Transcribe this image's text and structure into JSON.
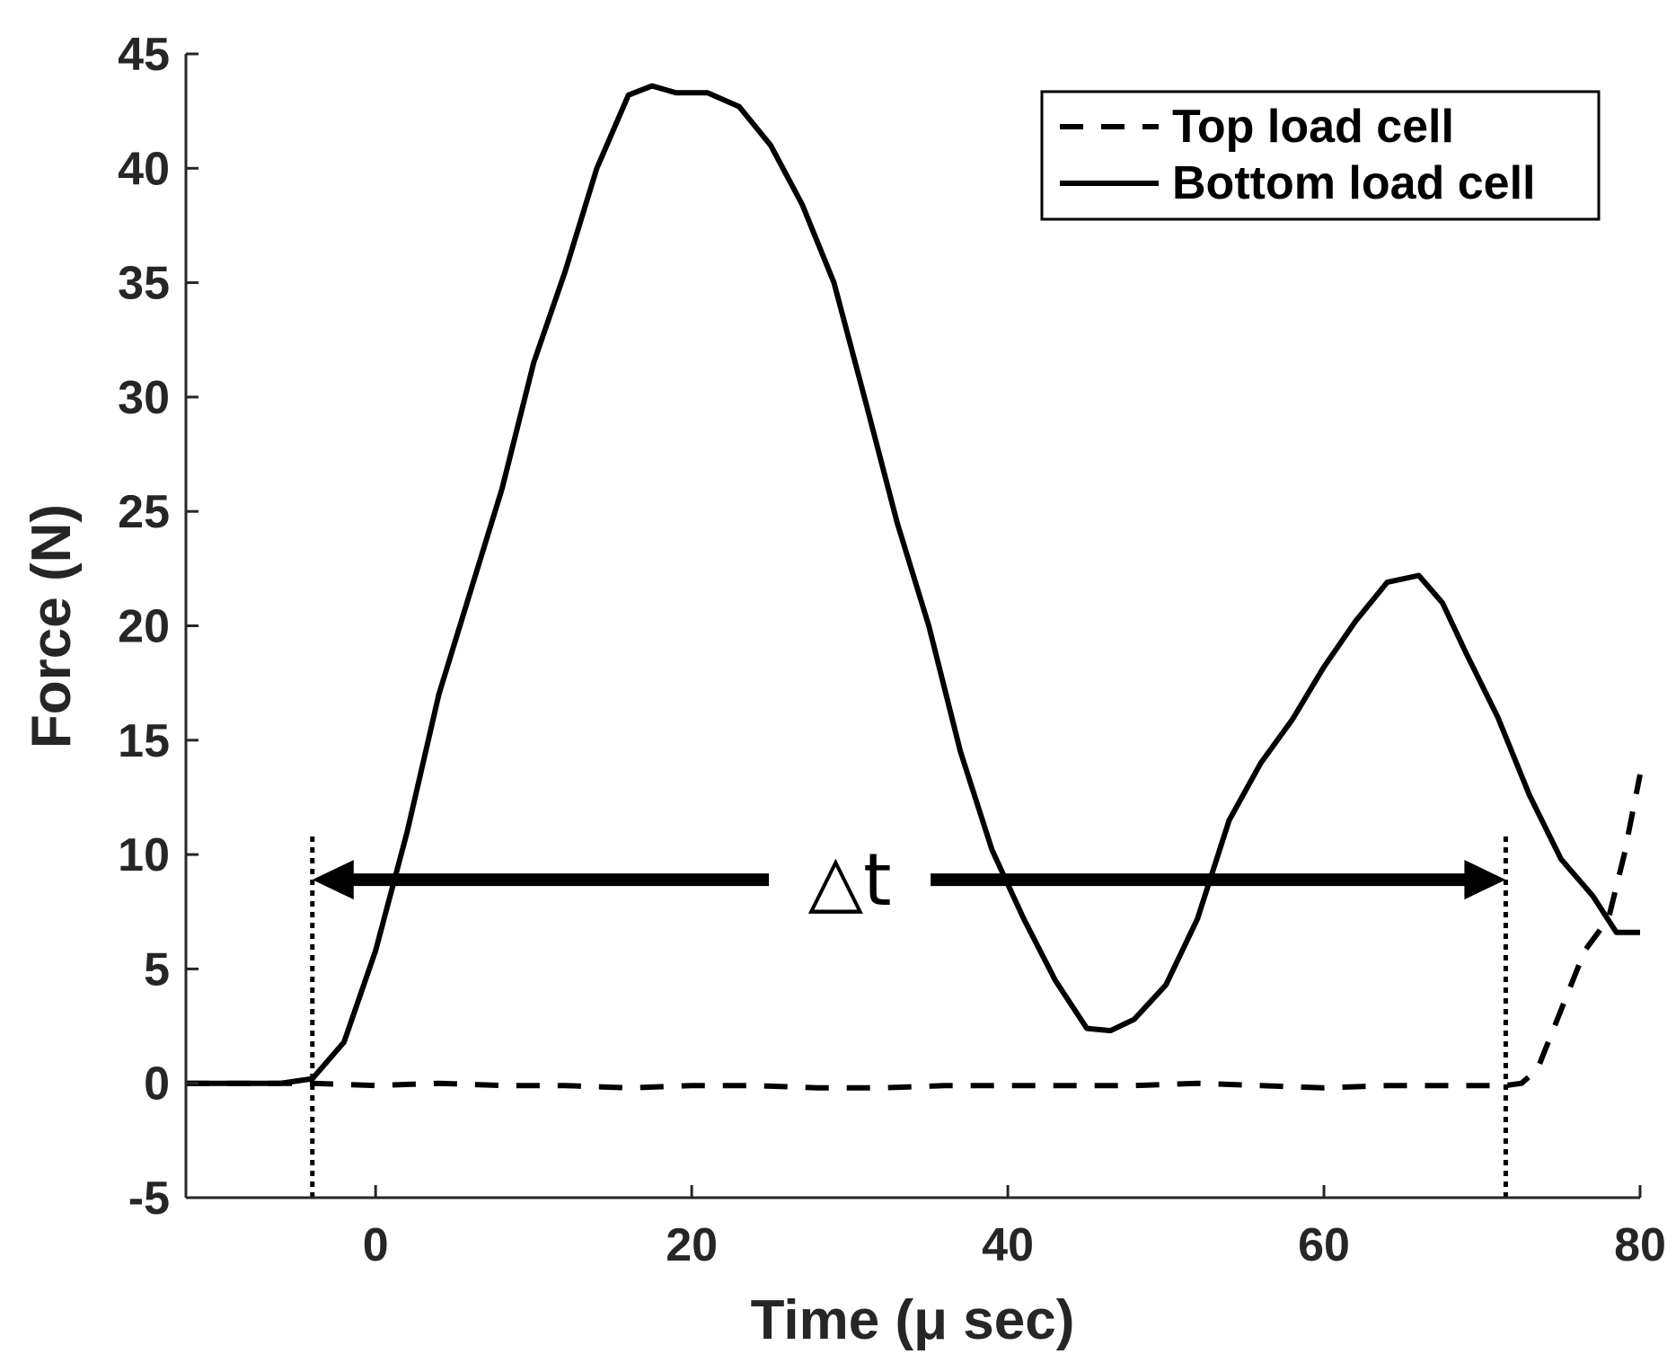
{
  "chart_data": {
    "type": "line",
    "title": "",
    "xlabel": "Time (μ sec)",
    "ylabel": "Force (N)",
    "xlim": [
      -12,
      80
    ],
    "ylim": [
      -5,
      45
    ],
    "xticks": [
      0,
      20,
      40,
      60,
      80
    ],
    "yticks": [
      -5,
      0,
      5,
      10,
      15,
      20,
      25,
      30,
      35,
      40,
      45
    ],
    "xtick_labels": [
      "0",
      "20",
      "40",
      "60",
      "80"
    ],
    "ytick_labels": [
      "-5",
      "0",
      "5",
      "10",
      "15",
      "20",
      "25",
      "30",
      "35",
      "40",
      "45"
    ],
    "grid": false,
    "legend_position": "top-right",
    "series": [
      {
        "name": "Top load cell",
        "style": "dashed",
        "color": "#000000",
        "x": [
          -12,
          -8,
          -4,
          0,
          4,
          8,
          12,
          16,
          20,
          24,
          28,
          32,
          36,
          40,
          44,
          48,
          52,
          56,
          60,
          64,
          68,
          71.5,
          72.5,
          73.5,
          75,
          76.5,
          78,
          79,
          80
        ],
        "y": [
          0,
          0,
          0,
          -0.1,
          0,
          -0.1,
          -0.1,
          -0.2,
          -0.1,
          -0.1,
          -0.2,
          -0.2,
          -0.1,
          -0.1,
          -0.1,
          -0.1,
          0,
          -0.1,
          -0.2,
          -0.1,
          -0.1,
          -0.1,
          0,
          0.6,
          3.2,
          5.8,
          7.2,
          10,
          13.5
        ]
      },
      {
        "name": "Bottom load cell",
        "style": "solid",
        "color": "#000000",
        "x": [
          -12,
          -9,
          -6,
          -4,
          -2,
          0,
          2,
          4,
          6,
          8,
          10,
          12,
          14,
          16,
          17.5,
          19,
          21,
          23,
          25,
          27,
          29,
          31,
          33,
          35,
          37,
          39,
          41,
          43,
          45,
          46.5,
          48,
          50,
          52,
          54,
          56,
          58,
          60,
          62,
          64,
          66,
          67.5,
          69,
          71,
          73,
          75,
          77,
          78.5,
          80
        ],
        "y": [
          0,
          0,
          0,
          0.2,
          1.8,
          5.8,
          11,
          17,
          21.5,
          26,
          31.5,
          35.5,
          40,
          43.2,
          43.6,
          43.3,
          43.3,
          42.7,
          41,
          38.4,
          35,
          29.8,
          24.5,
          20,
          14.5,
          10.2,
          7.2,
          4.5,
          2.4,
          2.3,
          2.8,
          4.3,
          7.2,
          11.5,
          14,
          15.9,
          18.2,
          20.2,
          21.9,
          22.2,
          21,
          18.8,
          16,
          12.6,
          9.8,
          8.2,
          6.6,
          6.6
        ]
      }
    ],
    "annotations": [
      {
        "type": "vline",
        "style": "dotted",
        "x": -4,
        "y_range": [
          -5,
          11
        ]
      },
      {
        "type": "vline",
        "style": "dotted",
        "x": 71.5,
        "y_range": [
          -5,
          11
        ]
      },
      {
        "type": "double-arrow",
        "x_range": [
          -4,
          71.5
        ],
        "y": 8.9,
        "label": "△t",
        "label_x": 30
      }
    ]
  }
}
